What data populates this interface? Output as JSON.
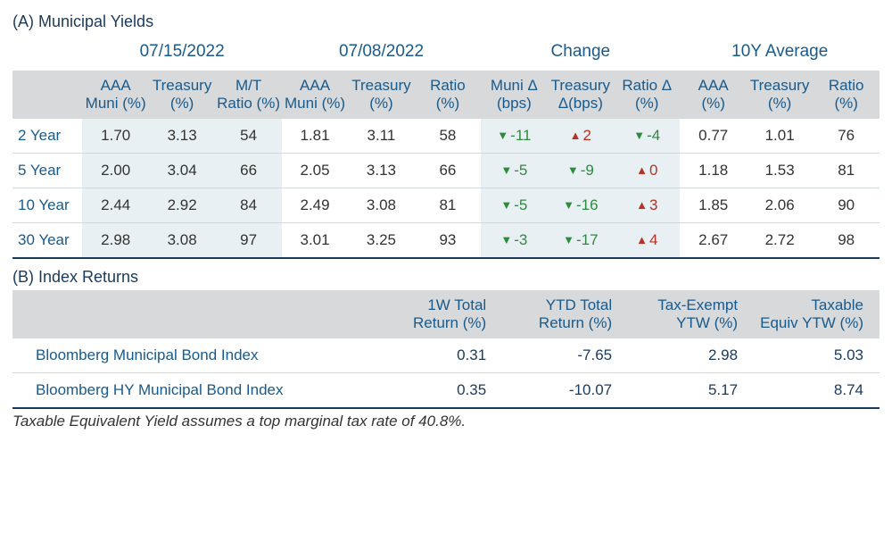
{
  "colors": {
    "text_primary": "#1a3a5c",
    "header_blue": "#195a8c",
    "header_bg": "#d7d9db",
    "shade_bg": "#e9f0f4",
    "row_border": "#d0d7de",
    "bottom_border": "#1a3a5c",
    "up_red": "#b83225",
    "down_green": "#2d8a3e"
  },
  "sectionA": {
    "title": "(A) Municipal Yields",
    "super_headers": [
      "07/15/2022",
      "07/08/2022",
      "Change",
      "10Y Average"
    ],
    "sub_headers": {
      "g1": [
        "AAA Muni (%)",
        "Treasury (%)",
        "M/T Ratio (%)"
      ],
      "g2": [
        "AAA Muni (%)",
        "Treasury (%)",
        "Ratio (%)"
      ],
      "g3": [
        "Muni Δ (bps)",
        "Treasury Δ(bps)",
        "Ratio Δ (%)"
      ],
      "g4": [
        "AAA (%)",
        "Treasury (%)",
        "Ratio (%)"
      ]
    },
    "rows": [
      {
        "label": "2 Year",
        "g1": [
          "1.70",
          "3.13",
          "54"
        ],
        "g2": [
          "1.81",
          "3.11",
          "58"
        ],
        "g3": [
          {
            "dir": "dn",
            "val": "-11"
          },
          {
            "dir": "up",
            "val": "2"
          },
          {
            "dir": "dn",
            "val": "-4"
          }
        ],
        "g4": [
          "0.77",
          "1.01",
          "76"
        ]
      },
      {
        "label": "5 Year",
        "g1": [
          "2.00",
          "3.04",
          "66"
        ],
        "g2": [
          "2.05",
          "3.13",
          "66"
        ],
        "g3": [
          {
            "dir": "dn",
            "val": "-5"
          },
          {
            "dir": "dn",
            "val": "-9"
          },
          {
            "dir": "up",
            "val": "0"
          }
        ],
        "g4": [
          "1.18",
          "1.53",
          "81"
        ]
      },
      {
        "label": "10 Year",
        "g1": [
          "2.44",
          "2.92",
          "84"
        ],
        "g2": [
          "2.49",
          "3.08",
          "81"
        ],
        "g3": [
          {
            "dir": "dn",
            "val": "-5"
          },
          {
            "dir": "dn",
            "val": "-16"
          },
          {
            "dir": "up",
            "val": "3"
          }
        ],
        "g4": [
          "1.85",
          "2.06",
          "90"
        ]
      },
      {
        "label": "30 Year",
        "g1": [
          "2.98",
          "3.08",
          "97"
        ],
        "g2": [
          "3.01",
          "3.25",
          "93"
        ],
        "g3": [
          {
            "dir": "dn",
            "val": "-3"
          },
          {
            "dir": "dn",
            "val": "-17"
          },
          {
            "dir": "up",
            "val": "4"
          }
        ],
        "g4": [
          "2.67",
          "2.72",
          "98"
        ]
      }
    ]
  },
  "sectionB": {
    "title": "(B) Index Returns",
    "columns": [
      "1W Total Return (%)",
      "YTD Total Return (%)",
      "Tax-Exempt YTW (%)",
      "Taxable Equiv YTW (%)"
    ],
    "col_widths_pct": [
      42,
      14.5,
      14.5,
      14.5,
      14.5
    ],
    "rows": [
      {
        "label": "Bloomberg Municipal Bond Index",
        "vals": [
          "0.31",
          "-7.65",
          "2.98",
          "5.03"
        ]
      },
      {
        "label": "Bloomberg HY Municipal Bond Index",
        "vals": [
          "0.35",
          "-10.07",
          "5.17",
          "8.74"
        ]
      }
    ]
  },
  "footnote": "Taxable Equivalent Yield assumes a top marginal tax rate of 40.8%."
}
